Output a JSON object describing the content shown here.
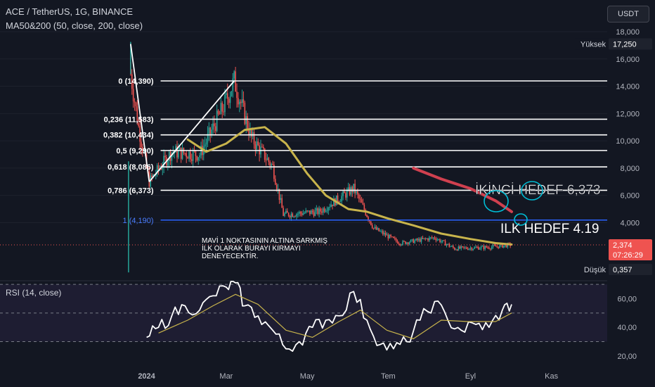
{
  "header": {
    "symbol_line": "ACE / TetherUS, 1G, BINANCE",
    "indicator_line": "MA50&200 (50, close, 200, close)"
  },
  "currency_button": "USDT",
  "rsi_label": "RSI (14, close)",
  "tags": {
    "high_label": "Yüksek",
    "high_value": "17,250",
    "low_label": "Düşük",
    "low_value": "0,357",
    "price_value": "2,374",
    "countdown": "07:26:29"
  },
  "annotations": {
    "second_target": "İKİNCİ HEDEF 6,373",
    "first_target": "ILK HEDEF 4.19",
    "note": [
      "MAVİ 1 NOKTASININ ALTINA SARKMIŞ",
      "İLK OLARAK BURAYI KIRMAYI",
      "DENEYECEKTİR."
    ]
  },
  "colors": {
    "background": "#131722",
    "up": "#26a69a",
    "down": "#ef5350",
    "ma50": "#c8b44c",
    "ma200": "#d0404f",
    "fib_line": "#ffffff",
    "fib_blue": "#2962ff",
    "rsi": "#ffffff",
    "rsi_ma": "#c8b44c",
    "circle": "#00bcd4"
  },
  "chart_data": [
    {
      "type": "candlestick",
      "title": "ACE / TetherUS, 1G, BINANCE",
      "ylim": [
        0,
        18
      ],
      "y_ticks": [
        "4,000",
        "6,000",
        "8,000",
        "10,000",
        "12,000",
        "14,000",
        "16,000",
        "18,000"
      ],
      "x_ticks": [
        "2024",
        "Mar",
        "May",
        "Tem",
        "Eyl",
        "Kas"
      ],
      "series_ohlc_summary": {
        "start": "2023-12-20",
        "peak_high": 17.25,
        "low": 0.357,
        "last_close": 2.374,
        "key_closes": [
          {
            "x": "2023-12-20",
            "y": 14.89
          },
          {
            "x": "2023-12-26",
            "y": 11.0
          },
          {
            "x": "2024-01-03",
            "y": 7.0
          },
          {
            "x": "2024-01-20",
            "y": 9.2
          },
          {
            "x": "2024-02-10",
            "y": 9.0
          },
          {
            "x": "2024-02-28",
            "y": 12.5
          },
          {
            "x": "2024-03-07",
            "y": 14.4
          },
          {
            "x": "2024-03-20",
            "y": 10.2
          },
          {
            "x": "2024-04-05",
            "y": 8.1
          },
          {
            "x": "2024-04-13",
            "y": 4.6
          },
          {
            "x": "2024-05-10",
            "y": 4.8
          },
          {
            "x": "2024-06-05",
            "y": 6.5
          },
          {
            "x": "2024-06-20",
            "y": 3.6
          },
          {
            "x": "2024-07-10",
            "y": 2.5
          },
          {
            "x": "2024-08-05",
            "y": 2.9
          },
          {
            "x": "2024-08-20",
            "y": 2.1
          },
          {
            "x": "2024-09-15",
            "y": 2.2
          },
          {
            "x": "2024-10-02",
            "y": 2.374
          }
        ]
      },
      "moving_averages": [
        {
          "name": "MA50",
          "points": [
            {
              "x": "2024-02-01",
              "y": 10.1
            },
            {
              "x": "2024-02-15",
              "y": 9.2
            },
            {
              "x": "2024-03-01",
              "y": 9.8
            },
            {
              "x": "2024-03-15",
              "y": 10.8
            },
            {
              "x": "2024-03-30",
              "y": 11.0
            },
            {
              "x": "2024-04-15",
              "y": 9.8
            },
            {
              "x": "2024-05-01",
              "y": 7.6
            },
            {
              "x": "2024-05-15",
              "y": 6.0
            },
            {
              "x": "2024-06-01",
              "y": 5.0
            },
            {
              "x": "2024-06-15",
              "y": 4.8
            },
            {
              "x": "2024-07-01",
              "y": 4.3
            },
            {
              "x": "2024-07-20",
              "y": 3.8
            },
            {
              "x": "2024-08-10",
              "y": 3.2
            },
            {
              "x": "2024-09-01",
              "y": 2.8
            },
            {
              "x": "2024-09-20",
              "y": 2.5
            },
            {
              "x": "2024-10-02",
              "y": 2.4
            }
          ]
        },
        {
          "name": "MA200",
          "points": [
            {
              "x": "2024-07-20",
              "y": 8.0
            },
            {
              "x": "2024-08-10",
              "y": 7.2
            },
            {
              "x": "2024-09-01",
              "y": 6.5
            },
            {
              "x": "2024-09-20",
              "y": 5.6
            },
            {
              "x": "2024-10-02",
              "y": 4.8
            }
          ]
        }
      ],
      "fibonacci": [
        {
          "label": "0 (14,390)",
          "value": 14.39
        },
        {
          "label": "0,236 (11,583)",
          "value": 11.583
        },
        {
          "label": "0,382 (10,434)",
          "value": 10.434
        },
        {
          "label": "0,5 (9,290)",
          "value": 9.29
        },
        {
          "label": "0,618 (8,086)",
          "value": 8.086
        },
        {
          "label": "0,786 (6,373)",
          "value": 6.373
        },
        {
          "label": "1 (4,190)",
          "value": 4.19
        }
      ]
    },
    {
      "type": "line",
      "title": "RSI (14, close)",
      "ylim": [
        18,
        72
      ],
      "y_ticks": [
        "20,00",
        "40,00",
        "60,00"
      ],
      "bands": [
        30,
        50,
        70
      ],
      "series": [
        {
          "name": "RSI",
          "values": [
            {
              "x": "2024-01-01",
              "y": 33
            },
            {
              "x": "2024-01-10",
              "y": 40
            },
            {
              "x": "2024-01-20",
              "y": 48
            },
            {
              "x": "2024-01-30",
              "y": 55
            },
            {
              "x": "2024-02-10",
              "y": 52
            },
            {
              "x": "2024-02-20",
              "y": 62
            },
            {
              "x": "2024-03-01",
              "y": 68
            },
            {
              "x": "2024-03-08",
              "y": 71
            },
            {
              "x": "2024-03-15",
              "y": 55
            },
            {
              "x": "2024-03-25",
              "y": 48
            },
            {
              "x": "2024-04-05",
              "y": 38
            },
            {
              "x": "2024-04-15",
              "y": 25
            },
            {
              "x": "2024-04-25",
              "y": 30
            },
            {
              "x": "2024-05-05",
              "y": 40
            },
            {
              "x": "2024-05-15",
              "y": 45
            },
            {
              "x": "2024-05-25",
              "y": 48
            },
            {
              "x": "2024-06-05",
              "y": 65
            },
            {
              "x": "2024-06-15",
              "y": 45
            },
            {
              "x": "2024-06-25",
              "y": 28
            },
            {
              "x": "2024-07-05",
              "y": 25
            },
            {
              "x": "2024-07-15",
              "y": 30
            },
            {
              "x": "2024-07-25",
              "y": 45
            },
            {
              "x": "2024-08-05",
              "y": 58
            },
            {
              "x": "2024-08-15",
              "y": 45
            },
            {
              "x": "2024-08-25",
              "y": 38
            },
            {
              "x": "2024-09-05",
              "y": 42
            },
            {
              "x": "2024-09-15",
              "y": 40
            },
            {
              "x": "2024-09-25",
              "y": 52
            },
            {
              "x": "2024-10-02",
              "y": 56
            }
          ]
        },
        {
          "name": "RSI MA",
          "values": [
            {
              "x": "2024-01-10",
              "y": 36
            },
            {
              "x": "2024-02-01",
              "y": 45
            },
            {
              "x": "2024-02-20",
              "y": 55
            },
            {
              "x": "2024-03-08",
              "y": 63
            },
            {
              "x": "2024-03-25",
              "y": 56
            },
            {
              "x": "2024-04-15",
              "y": 38
            },
            {
              "x": "2024-05-05",
              "y": 33
            },
            {
              "x": "2024-05-25",
              "y": 44
            },
            {
              "x": "2024-06-10",
              "y": 52
            },
            {
              "x": "2024-06-30",
              "y": 38
            },
            {
              "x": "2024-07-20",
              "y": 32
            },
            {
              "x": "2024-08-10",
              "y": 45
            },
            {
              "x": "2024-08-30",
              "y": 44
            },
            {
              "x": "2024-09-20",
              "y": 44
            },
            {
              "x": "2024-10-02",
              "y": 50
            }
          ]
        }
      ]
    }
  ]
}
